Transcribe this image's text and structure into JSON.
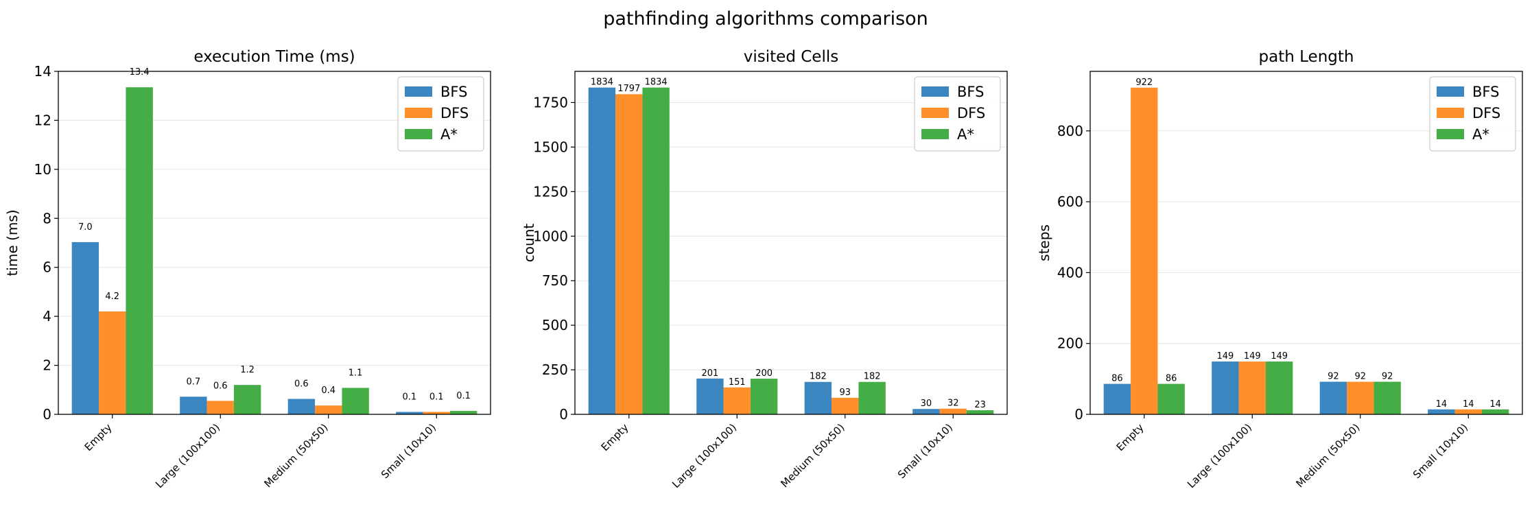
{
  "figure": {
    "title": "pathfinding algorithms comparison"
  },
  "colors": {
    "BFS": "#3b85c0",
    "DFS": "#ff8e2b",
    "A*": "#45ad45"
  },
  "chart_data": [
    {
      "type": "bar",
      "title": "execution Time (ms)",
      "xlabel": "",
      "ylabel": "time (ms)",
      "ylim": [
        0,
        14
      ],
      "yticks": [
        0,
        2,
        4,
        6,
        8,
        10,
        12,
        14
      ],
      "grid": "y",
      "legend": "top-right",
      "categories": [
        "Empty",
        "Large (100x100)",
        "Medium (50x50)",
        "Small (10x10)"
      ],
      "series": [
        {
          "name": "BFS",
          "values": [
            7.03,
            0.72,
            0.63,
            0.1
          ],
          "labels": [
            "7.0",
            "0.7",
            "0.6",
            "0.1"
          ]
        },
        {
          "name": "DFS",
          "values": [
            4.2,
            0.55,
            0.36,
            0.1
          ],
          "labels": [
            "4.2",
            "0.6",
            "0.4",
            "0.1"
          ]
        },
        {
          "name": "A*",
          "values": [
            13.35,
            1.2,
            1.08,
            0.14
          ],
          "labels": [
            "13.4",
            "1.2",
            "1.1",
            "0.1"
          ]
        }
      ]
    },
    {
      "type": "bar",
      "title": "visited Cells",
      "xlabel": "",
      "ylabel": "count",
      "ylim": [
        0,
        1925
      ],
      "yticks": [
        0,
        250,
        500,
        750,
        1000,
        1250,
        1500,
        1750
      ],
      "grid": "y",
      "legend": "top-right",
      "categories": [
        "Empty",
        "Large (100x100)",
        "Medium (50x50)",
        "Small (10x10)"
      ],
      "series": [
        {
          "name": "BFS",
          "values": [
            1834,
            201,
            182,
            30
          ],
          "labels": [
            "1834",
            "201",
            "182",
            "30"
          ]
        },
        {
          "name": "DFS",
          "values": [
            1797,
            151,
            93,
            32
          ],
          "labels": [
            "1797",
            "151",
            "93",
            "32"
          ]
        },
        {
          "name": "A*",
          "values": [
            1834,
            200,
            182,
            23
          ],
          "labels": [
            "1834",
            "200",
            "182",
            "23"
          ]
        }
      ]
    },
    {
      "type": "bar",
      "title": "path Length",
      "xlabel": "",
      "ylabel": "steps",
      "ylim": [
        0,
        968
      ],
      "yticks": [
        0,
        200,
        400,
        600,
        800
      ],
      "grid": "y",
      "legend": "top-right",
      "categories": [
        "Empty",
        "Large (100x100)",
        "Medium (50x50)",
        "Small (10x10)"
      ],
      "series": [
        {
          "name": "BFS",
          "values": [
            86,
            149,
            92,
            14
          ],
          "labels": [
            "86",
            "149",
            "92",
            "14"
          ]
        },
        {
          "name": "DFS",
          "values": [
            922,
            149,
            92,
            14
          ],
          "labels": [
            "922",
            "149",
            "92",
            "14"
          ]
        },
        {
          "name": "A*",
          "values": [
            86,
            149,
            92,
            14
          ],
          "labels": [
            "86",
            "149",
            "92",
            "14"
          ]
        }
      ]
    }
  ]
}
